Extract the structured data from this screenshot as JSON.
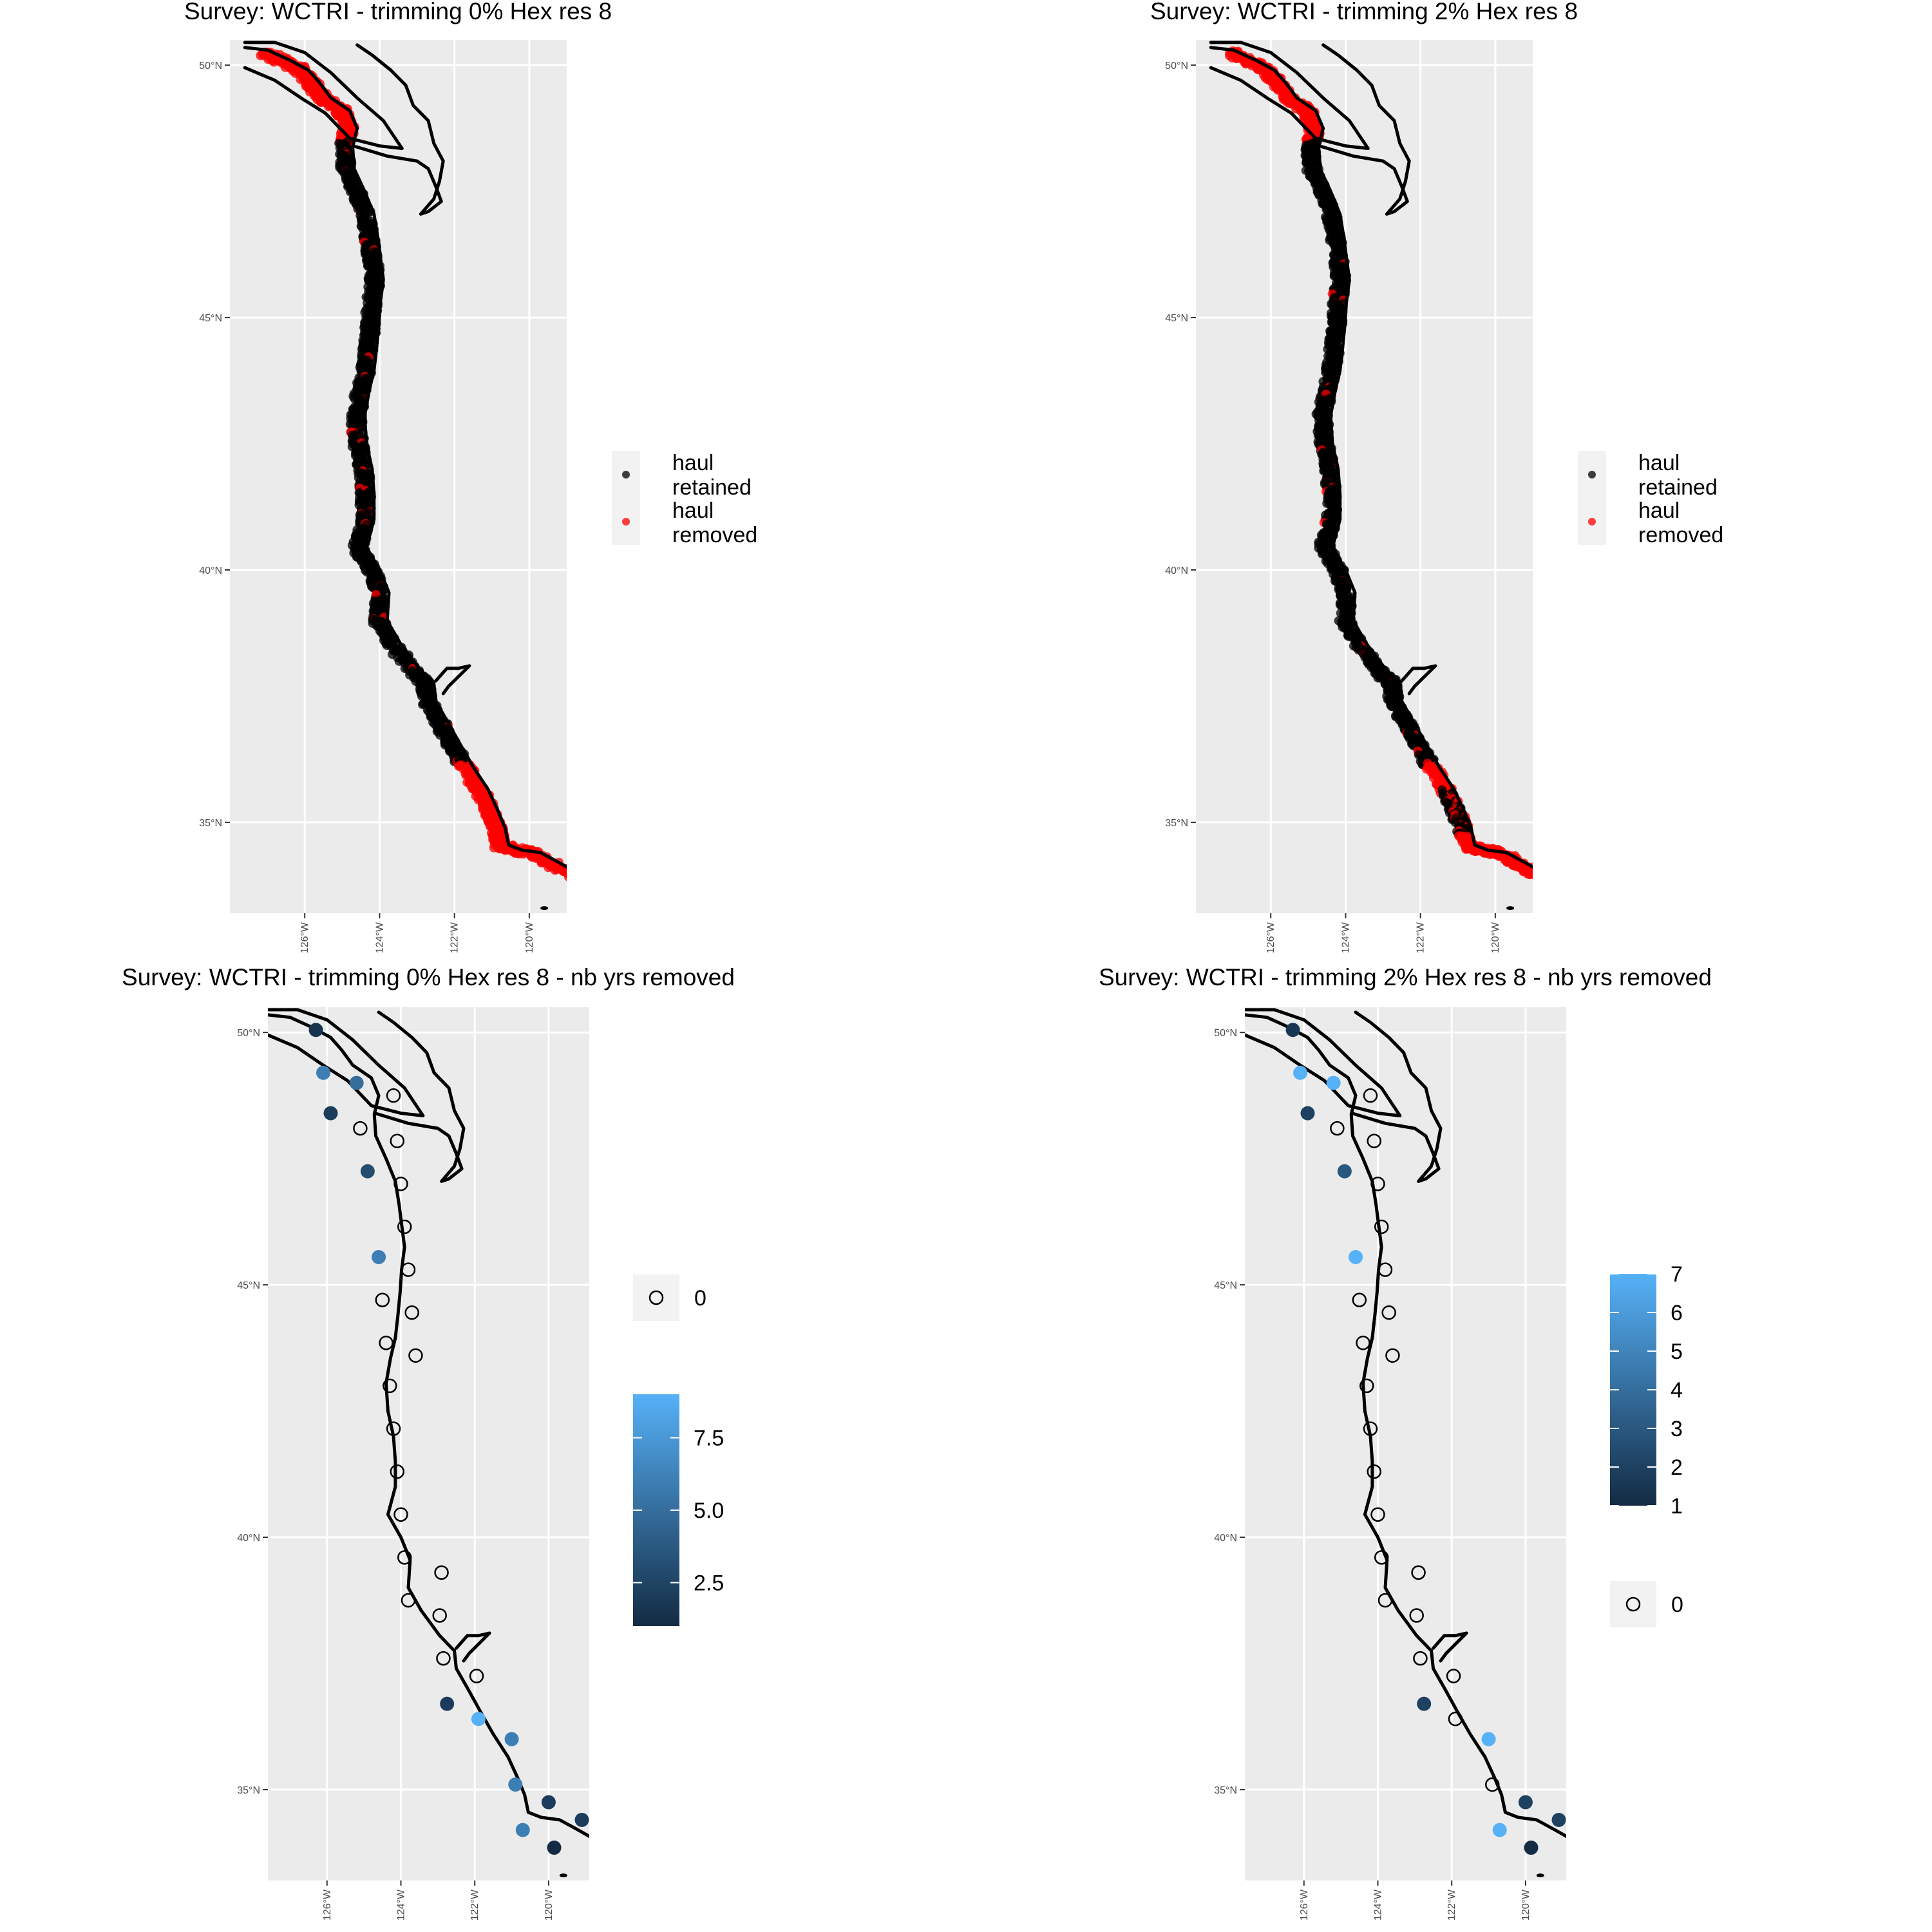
{
  "colors": {
    "panel_bg": "#EBEBEB",
    "grid": "#FFFFFF",
    "retained": "#000000",
    "removed": "#FF0000",
    "gradient_low": "#132B43",
    "gradient_high": "#56B1F7"
  },
  "panels": [
    {
      "title": "Survey: WCTRI - trimming 0% Hex res 8",
      "kind": "haul",
      "legend": {
        "labels": [
          "haul",
          "retained",
          "haul",
          "removed"
        ]
      }
    },
    {
      "title": "Survey: WCTRI - trimming 2% Hex res 8",
      "kind": "haul",
      "legend": {
        "labels": [
          "haul",
          "retained",
          "haul",
          "removed"
        ]
      }
    },
    {
      "title": "Survey: WCTRI - trimming 0% Hex res 8 - nb yrs removed",
      "kind": "hex",
      "legend": {
        "zero_label": "0",
        "colorbar_ticks": [
          "7.5",
          "5.0",
          "2.5"
        ]
      }
    },
    {
      "title": "Survey: WCTRI - trimming 2% Hex res 8 - nb yrs removed",
      "kind": "hex",
      "legend": {
        "zero_label": "0",
        "colorbar_ticks": [
          "7",
          "6",
          "5",
          "4",
          "3",
          "2",
          "1"
        ]
      }
    }
  ],
  "axes": {
    "lat_ticks": [
      "50°N",
      "45°N",
      "40°N",
      "35°N"
    ],
    "lon_ticks": [
      "126°W",
      "124°W",
      "122°W",
      "120°W"
    ]
  },
  "chart_data": [
    {
      "type": "scatter",
      "title": "Survey: WCTRI - trimming 0% Hex res 8",
      "series": [
        {
          "name": "haul retained",
          "color": "#000000"
        },
        {
          "name": "haul removed",
          "color": "#FF0000"
        }
      ],
      "xlim": [
        -128,
        -119
      ],
      "ylim": [
        33.2,
        50.5
      ]
    },
    {
      "type": "scatter",
      "title": "Survey: WCTRI - trimming 2% Hex res 8",
      "series": [
        {
          "name": "haul retained",
          "color": "#000000"
        },
        {
          "name": "haul removed",
          "color": "#FF0000"
        }
      ],
      "xlim": [
        -128,
        -119
      ],
      "ylim": [
        33.2,
        50.5
      ]
    },
    {
      "type": "scatter",
      "title": "Survey: WCTRI - trimming 0% Hex res 8 - nb yrs removed",
      "colorbar_range": [
        1,
        9
      ],
      "xlim": [
        -127.6,
        -118.9
      ],
      "ylim": [
        33.2,
        50.5
      ],
      "points": [
        {
          "lon": -126.3,
          "lat": 50.05,
          "v": 1.5
        },
        {
          "lon": -126.1,
          "lat": 49.2,
          "v": 6
        },
        {
          "lon": -125.9,
          "lat": 48.4,
          "v": 2
        },
        {
          "lon": -125.2,
          "lat": 49.0,
          "v": 5
        },
        {
          "lon": -124.2,
          "lat": 48.75,
          "v": 0
        },
        {
          "lon": -125.1,
          "lat": 48.1,
          "v": 0
        },
        {
          "lon": -124.1,
          "lat": 47.85,
          "v": 0
        },
        {
          "lon": -124.9,
          "lat": 47.25,
          "v": 3
        },
        {
          "lon": -124.0,
          "lat": 47.0,
          "v": 0
        },
        {
          "lon": -123.9,
          "lat": 46.15,
          "v": 0
        },
        {
          "lon": -124.6,
          "lat": 45.55,
          "v": 6
        },
        {
          "lon": -123.8,
          "lat": 45.3,
          "v": 0
        },
        {
          "lon": -124.5,
          "lat": 44.7,
          "v": 0
        },
        {
          "lon": -123.7,
          "lat": 44.45,
          "v": 0
        },
        {
          "lon": -124.4,
          "lat": 43.85,
          "v": 0
        },
        {
          "lon": -123.6,
          "lat": 43.6,
          "v": 0
        },
        {
          "lon": -124.3,
          "lat": 43.0,
          "v": 0
        },
        {
          "lon": -124.2,
          "lat": 42.15,
          "v": 0
        },
        {
          "lon": -124.1,
          "lat": 41.3,
          "v": 0
        },
        {
          "lon": -124.0,
          "lat": 40.45,
          "v": 0
        },
        {
          "lon": -123.9,
          "lat": 39.6,
          "v": 0
        },
        {
          "lon": -122.9,
          "lat": 39.3,
          "v": 0
        },
        {
          "lon": -123.8,
          "lat": 38.75,
          "v": 0
        },
        {
          "lon": -122.95,
          "lat": 38.45,
          "v": 0
        },
        {
          "lon": -122.85,
          "lat": 37.6,
          "v": 0
        },
        {
          "lon": -121.95,
          "lat": 37.25,
          "v": 0
        },
        {
          "lon": -122.75,
          "lat": 36.7,
          "v": 2
        },
        {
          "lon": -121.9,
          "lat": 36.4,
          "v": 9
        },
        {
          "lon": -121.0,
          "lat": 36.0,
          "v": 6
        },
        {
          "lon": -120.9,
          "lat": 35.1,
          "v": 6
        },
        {
          "lon": -120.0,
          "lat": 34.75,
          "v": 2
        },
        {
          "lon": -120.7,
          "lat": 34.2,
          "v": 6
        },
        {
          "lon": -119.1,
          "lat": 34.4,
          "v": 2
        },
        {
          "lon": -119.85,
          "lat": 33.85,
          "v": 1
        }
      ]
    },
    {
      "type": "scatter",
      "title": "Survey: WCTRI - trimming 2% Hex res 8 - nb yrs removed",
      "colorbar_range": [
        1,
        7
      ],
      "xlim": [
        -127.6,
        -118.9
      ],
      "ylim": [
        33.2,
        50.5
      ],
      "points": [
        {
          "lon": -126.3,
          "lat": 50.05,
          "v": 1.5
        },
        {
          "lon": -126.1,
          "lat": 49.2,
          "v": 7
        },
        {
          "lon": -125.9,
          "lat": 48.4,
          "v": 2
        },
        {
          "lon": -125.2,
          "lat": 49.0,
          "v": 7
        },
        {
          "lon": -124.2,
          "lat": 48.75,
          "v": 0
        },
        {
          "lon": -125.1,
          "lat": 48.1,
          "v": 0
        },
        {
          "lon": -124.1,
          "lat": 47.85,
          "v": 0
        },
        {
          "lon": -124.9,
          "lat": 47.25,
          "v": 3
        },
        {
          "lon": -124.0,
          "lat": 47.0,
          "v": 0
        },
        {
          "lon": -123.9,
          "lat": 46.15,
          "v": 0
        },
        {
          "lon": -124.6,
          "lat": 45.55,
          "v": 7
        },
        {
          "lon": -123.8,
          "lat": 45.3,
          "v": 0
        },
        {
          "lon": -124.5,
          "lat": 44.7,
          "v": 0
        },
        {
          "lon": -123.7,
          "lat": 44.45,
          "v": 0
        },
        {
          "lon": -124.4,
          "lat": 43.85,
          "v": 0
        },
        {
          "lon": -123.6,
          "lat": 43.6,
          "v": 0
        },
        {
          "lon": -124.3,
          "lat": 43.0,
          "v": 0
        },
        {
          "lon": -124.2,
          "lat": 42.15,
          "v": 0
        },
        {
          "lon": -124.1,
          "lat": 41.3,
          "v": 0
        },
        {
          "lon": -124.0,
          "lat": 40.45,
          "v": 0
        },
        {
          "lon": -123.9,
          "lat": 39.6,
          "v": 0
        },
        {
          "lon": -122.9,
          "lat": 39.3,
          "v": 0
        },
        {
          "lon": -123.8,
          "lat": 38.75,
          "v": 0
        },
        {
          "lon": -122.95,
          "lat": 38.45,
          "v": 0
        },
        {
          "lon": -122.85,
          "lat": 37.6,
          "v": 0
        },
        {
          "lon": -121.95,
          "lat": 37.25,
          "v": 0
        },
        {
          "lon": -122.75,
          "lat": 36.7,
          "v": 2
        },
        {
          "lon": -121.9,
          "lat": 36.4,
          "v": 0
        },
        {
          "lon": -121.0,
          "lat": 36.0,
          "v": 7
        },
        {
          "lon": -120.9,
          "lat": 35.1,
          "v": 0
        },
        {
          "lon": -120.0,
          "lat": 34.75,
          "v": 2
        },
        {
          "lon": -120.7,
          "lat": 34.2,
          "v": 7
        },
        {
          "lon": -119.1,
          "lat": 34.4,
          "v": 2
        },
        {
          "lon": -119.85,
          "lat": 33.85,
          "v": 1
        }
      ]
    }
  ]
}
